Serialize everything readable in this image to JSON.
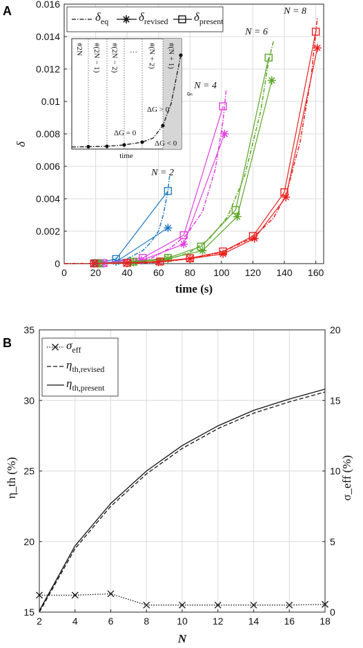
{
  "chart_data": [
    {
      "panel": "A",
      "type": "line",
      "xlabel": "time (s)",
      "ylabel": "δ",
      "xlim": [
        0,
        165
      ],
      "ylim": [
        0,
        0.016
      ],
      "xticks": [
        "0",
        "20",
        "40",
        "60",
        "80",
        "100",
        "120",
        "140",
        "160"
      ],
      "yticks": [
        "0",
        "0.002",
        "0.004",
        "0.006",
        "0.008",
        "0.01",
        "0.012",
        "0.014",
        "0.016"
      ],
      "grid": true,
      "legend": {
        "placement": "top-left",
        "entries": [
          {
            "key": "eq",
            "symbol": "δ",
            "sub": "eq"
          },
          {
            "key": "revised",
            "symbol": "δ",
            "sub": "revised"
          },
          {
            "key": "present",
            "symbol": "δ",
            "sub": "present"
          }
        ]
      },
      "series": [
        {
          "label": "N = 2",
          "color": "#1f78c4",
          "eq": [
            [
              0,
              0
            ],
            [
              20,
              1e-05
            ],
            [
              30,
              5e-05
            ],
            [
              40,
              0.0003
            ],
            [
              50,
              0.0008
            ],
            [
              55,
              0.0013
            ],
            [
              60,
              0.002
            ],
            [
              63,
              0.003
            ],
            [
              66,
              0.0045
            ],
            [
              67,
              0.0054
            ]
          ],
          "revised": [
            [
              20,
              2e-05
            ],
            [
              33,
              0.00012
            ],
            [
              66,
              0.0022
            ]
          ],
          "present": [
            [
              20,
              3e-05
            ],
            [
              33,
              0.00028
            ],
            [
              66,
              0.00448
            ]
          ]
        },
        {
          "label": "N = 4",
          "color": "#e23ee0",
          "eq": [
            [
              0,
              0
            ],
            [
              20,
              1e-05
            ],
            [
              40,
              5e-05
            ],
            [
              55,
              0.0003
            ],
            [
              68,
              0.001
            ],
            [
              78,
              0.0018
            ],
            [
              88,
              0.0032
            ],
            [
              96,
              0.0058
            ],
            [
              101,
              0.0088
            ],
            [
              103,
              0.0107
            ]
          ],
          "revised": [
            [
              25,
              2e-05
            ],
            [
              49,
              0.0002
            ],
            [
              76,
              0.0012
            ],
            [
              102,
              0.008
            ]
          ],
          "present": [
            [
              25,
              3e-05
            ],
            [
              50,
              0.00035
            ],
            [
              76,
              0.00175
            ],
            [
              101,
              0.0097
            ]
          ]
        },
        {
          "label": "N = 6",
          "color": "#5aa626",
          "eq": [
            [
              0,
              0
            ],
            [
              30,
              1e-05
            ],
            [
              50,
              5e-05
            ],
            [
              66,
              0.00025
            ],
            [
              80,
              0.0007
            ],
            [
              92,
              0.0015
            ],
            [
              104,
              0.0029
            ],
            [
              115,
              0.0055
            ],
            [
              125,
              0.0094
            ],
            [
              130,
              0.0125
            ],
            [
              133,
              0.0137
            ]
          ],
          "revised": [
            [
              22,
              1e-05
            ],
            [
              44,
              8e-05
            ],
            [
              66,
              0.0003
            ],
            [
              88,
              0.0008
            ],
            [
              110,
              0.0029
            ],
            [
              132,
              0.0113
            ]
          ],
          "present": [
            [
              22,
              1e-05
            ],
            [
              44,
              0.00012
            ],
            [
              66,
              0.00035
            ],
            [
              87,
              0.00105
            ],
            [
              109,
              0.0033
            ],
            [
              130,
              0.0127
            ]
          ]
        },
        {
          "label": "N = 8",
          "color": "#e8201f",
          "eq": [
            [
              0,
              0
            ],
            [
              40,
              2e-05
            ],
            [
              60,
              8e-05
            ],
            [
              80,
              0.0003
            ],
            [
              100,
              0.0007
            ],
            [
              120,
              0.0016
            ],
            [
              133,
              0.0028
            ],
            [
              141,
              0.0042
            ],
            [
              150,
              0.0075
            ],
            [
              157,
              0.0115
            ],
            [
              161,
              0.0152
            ]
          ],
          "revised": [
            [
              19,
              1e-05
            ],
            [
              40,
              3e-05
            ],
            [
              60,
              0.0001
            ],
            [
              80,
              0.0003
            ],
            [
              101,
              0.0006
            ],
            [
              121,
              0.00155
            ],
            [
              141,
              0.0041
            ],
            [
              161,
              0.0133
            ]
          ],
          "present": [
            [
              19,
              1e-05
            ],
            [
              40,
              5e-05
            ],
            [
              61,
              0.00013
            ],
            [
              80,
              0.00033
            ],
            [
              101,
              0.00075
            ],
            [
              120,
              0.0017
            ],
            [
              140,
              0.0044
            ],
            [
              160,
              0.0143
            ]
          ]
        }
      ],
      "inset": {
        "xlabel": "time",
        "ylabel": "δ",
        "columns": [
          "#2N",
          "#(2N − 1)",
          "#(2N − 2)",
          "…",
          "#(N + 2)",
          "#(N + 1)"
        ],
        "annotations": [
          "ΔG = 0",
          "ΔG > 0",
          "ΔG < 0"
        ]
      }
    },
    {
      "panel": "B",
      "type": "line",
      "xlabel": "N",
      "ylabel_left": "η_th (%)",
      "ylabel_right": "σ_eff (%)",
      "xlim": [
        2,
        18
      ],
      "ylim_left": [
        15,
        35
      ],
      "ylim_right": [
        0,
        20
      ],
      "xticks": [
        "2",
        "4",
        "6",
        "8",
        "10",
        "12",
        "14",
        "16",
        "18"
      ],
      "yticks_left": [
        "15",
        "20",
        "25",
        "30",
        "35"
      ],
      "yticks_right": [
        "0",
        "5",
        "10",
        "15",
        "20"
      ],
      "grid": true,
      "legend": {
        "placement": "top-left",
        "entries": [
          {
            "key": "sigma",
            "symbol": "σ",
            "sub": "eff"
          },
          {
            "key": "revised",
            "symbol": "η",
            "sub": "th,revised"
          },
          {
            "key": "present",
            "symbol": "η",
            "sub": "th,present"
          }
        ]
      },
      "series": [
        {
          "key": "sigma",
          "axis": "right",
          "style": "dotted-x",
          "x": [
            2,
            4,
            6,
            8,
            10,
            12,
            14,
            16,
            18
          ],
          "values": [
            1.2,
            1.2,
            1.3,
            0.5,
            0.5,
            0.5,
            0.5,
            0.5,
            0.55
          ]
        },
        {
          "key": "revised",
          "axis": "left",
          "style": "dashed",
          "x": [
            2,
            4,
            6,
            8,
            10,
            12,
            14,
            16,
            18
          ],
          "values": [
            15.0,
            19.5,
            22.5,
            24.8,
            26.6,
            28.0,
            29.1,
            29.9,
            30.6
          ]
        },
        {
          "key": "present",
          "axis": "left",
          "style": "solid",
          "x": [
            2,
            4,
            6,
            8,
            10,
            12,
            14,
            16,
            18
          ],
          "values": [
            15.1,
            19.7,
            22.7,
            25.0,
            26.8,
            28.2,
            29.3,
            30.1,
            30.8
          ]
        }
      ]
    }
  ]
}
